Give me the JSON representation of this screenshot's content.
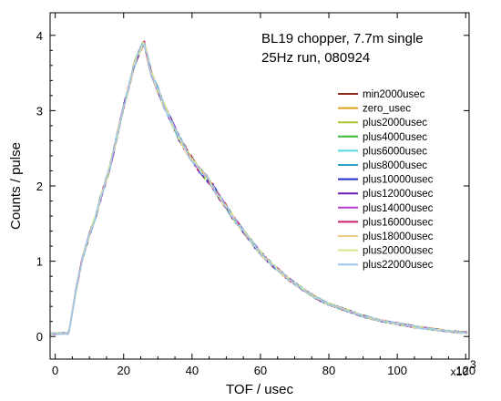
{
  "chart_data": {
    "type": "line",
    "title": "",
    "annotation": [
      "BL19 chopper, 7.7m single",
      "25Hz run, 080924"
    ],
    "xlabel": "TOF / usec",
    "ylabel": "Counts / pulse",
    "x_multiplier": "x10",
    "x_multiplier_exp": "3",
    "xlim": [
      -1500,
      121000
    ],
    "ylim": [
      -0.3,
      4.3
    ],
    "xticks": [
      0,
      20000,
      40000,
      60000,
      80000,
      100000,
      120000
    ],
    "xtick_labels": [
      "0",
      "20",
      "40",
      "60",
      "80",
      "100",
      "120"
    ],
    "yticks": [
      0,
      1,
      2,
      3,
      4
    ],
    "ytick_labels": [
      "0",
      "1",
      "2",
      "3",
      "4"
    ],
    "grid": false,
    "legend_position": "right",
    "envelope": {
      "x": [
        4000,
        6000,
        8000,
        10000,
        12000,
        14000,
        16000,
        18000,
        20000,
        22000,
        23000,
        24000,
        25000,
        26000,
        27000,
        28000,
        30000,
        32000,
        34000,
        36000,
        38000,
        40000,
        42000,
        44000,
        46000,
        48000,
        50000,
        52000,
        55000,
        58000,
        61000,
        64000,
        68000,
        72000,
        76000,
        80000,
        85000,
        90000,
        95000,
        100000,
        105000,
        110000,
        115000,
        120000
      ],
      "y": [
        0.05,
        0.6,
        1.05,
        1.35,
        1.62,
        1.95,
        2.25,
        2.65,
        3.05,
        3.4,
        3.6,
        3.72,
        3.82,
        3.9,
        3.72,
        3.5,
        3.28,
        3.05,
        2.85,
        2.65,
        2.5,
        2.35,
        2.22,
        2.12,
        2.0,
        1.85,
        1.72,
        1.58,
        1.4,
        1.22,
        1.06,
        0.93,
        0.77,
        0.64,
        0.52,
        0.43,
        0.35,
        0.27,
        0.21,
        0.17,
        0.13,
        0.1,
        0.07,
        0.05
      ]
    },
    "series": [
      {
        "name": "min2000usec",
        "color": "#8B2A1A",
        "cutoff_x": 125000
      },
      {
        "name": "zero_usec",
        "color": "#D9A21B",
        "cutoff_x": 125000
      },
      {
        "name": "plus2000usec",
        "color": "#A8C62E",
        "cutoff_x": 125000
      },
      {
        "name": "plus4000usec",
        "color": "#3BB83B",
        "cutoff_x": 125000
      },
      {
        "name": "plus6000usec",
        "color": "#55D8E0",
        "cutoff_x": 125000
      },
      {
        "name": "plus8000usec",
        "color": "#2F9FC4",
        "cutoff_x": 125000
      },
      {
        "name": "plus10000usec",
        "color": "#1C2FC9",
        "cutoff_x": 125000
      },
      {
        "name": "plus12000usec",
        "color": "#6B1FB0",
        "cutoff_x": 125000
      },
      {
        "name": "plus14000usec",
        "color": "#B33FC9",
        "cutoff_x": 125000
      },
      {
        "name": "plus16000usec",
        "color": "#CC1F6A",
        "cutoff_x": 125000
      },
      {
        "name": "plus18000usec",
        "color": "#F0CE8C",
        "cutoff_x": 125000
      },
      {
        "name": "plus20000usec",
        "color": "#D5E88F",
        "cutoff_x": 125000
      },
      {
        "name": "plus22000usec",
        "color": "#9CC8F0",
        "cutoff_x": 125000
      }
    ]
  }
}
